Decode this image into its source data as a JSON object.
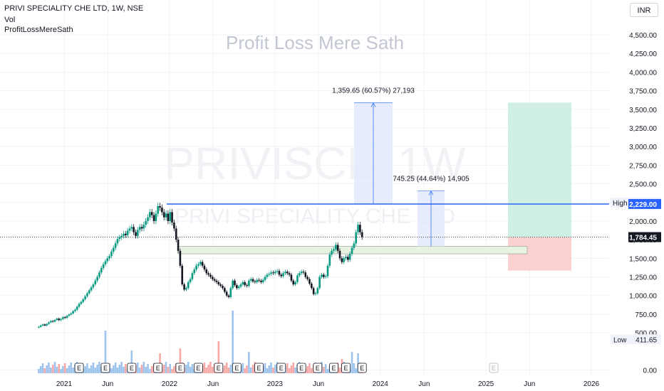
{
  "header": {
    "symbol_line": "PRIVI SPECIALITY CHE LTD, 1W, NSE",
    "indicator_1": "Vol",
    "indicator_2": "ProfitLossMereSath"
  },
  "currency": "INR",
  "watermarks": {
    "brand": "Profit Loss Mere Sath",
    "ticker": "PRIVISCL, 1W",
    "company": "PRIVI SPECIALITY CHE LTD"
  },
  "chart_data": {
    "type": "candlestick",
    "title": "PRIVI SPECIALITY CHE LTD, 1W, NSE",
    "x_tick_labels": [
      "2021",
      "Jun",
      "2022",
      "Jun",
      "2023",
      "Jun",
      "2024",
      "Jun",
      "2025",
      "Jun",
      "2026"
    ],
    "x_tick_dates": [
      "2021-01",
      "2021-06",
      "2022-01",
      "2022-06",
      "2023-01",
      "2023-06",
      "2024-01",
      "2024-06",
      "2025-01",
      "2025-06",
      "2026-01"
    ],
    "y_tick_labels": [
      "4,500.00",
      "4,250.00",
      "4,000.00",
      "3,750.00",
      "3,500.00",
      "3,250.00",
      "3,000.00",
      "2,750.00",
      "2,500.00",
      "2,250.00",
      "2,000.00",
      "1,750.00",
      "1,500.00",
      "1,250.00",
      "1,000.00",
      "750.00",
      "500.00",
      "0.00"
    ],
    "y_ticks": [
      4500,
      4250,
      4000,
      3750,
      3500,
      3250,
      3000,
      2750,
      2500,
      2250,
      2000,
      1750,
      1500,
      1250,
      1000,
      750,
      500,
      0
    ],
    "ylim": [
      -70,
      4760
    ],
    "series": {
      "date_start": "2020-10-05",
      "interval_days": 7,
      "close": [
        580,
        598,
        612,
        598,
        618,
        640,
        658,
        650,
        672,
        690,
        670,
        685,
        710,
        700,
        728,
        745,
        760,
        790,
        810,
        850,
        890,
        915,
        950,
        990,
        1030,
        1070,
        1110,
        1150,
        1200,
        1250,
        1310,
        1370,
        1420,
        1460,
        1500,
        1530,
        1590,
        1640,
        1700,
        1760,
        1780,
        1800,
        1830,
        1810,
        1870,
        1900,
        1920,
        1850,
        1800,
        1880,
        1920,
        1900,
        1950,
        2000,
        2050,
        2120,
        2080,
        2000,
        2100,
        2200,
        2180,
        2120,
        2050,
        2100,
        2000,
        2120,
        1980,
        1900,
        1750,
        1600,
        1400,
        1150,
        1080,
        1100,
        1180,
        1220,
        1300,
        1350,
        1400,
        1420,
        1450,
        1400,
        1350,
        1300,
        1280,
        1250,
        1220,
        1200,
        1180,
        1150,
        1130,
        1100,
        1050,
        1000,
        980,
        1100,
        1200,
        1140,
        1100,
        1120,
        1150,
        1180,
        1140,
        1130,
        1200,
        1220,
        1190,
        1180,
        1210,
        1200,
        1180,
        1210,
        1250,
        1280,
        1290,
        1310,
        1300,
        1320,
        1330,
        1280,
        1260,
        1300,
        1320,
        1300,
        1280,
        1200,
        1150,
        1180,
        1270,
        1300,
        1320,
        1310,
        1250,
        1220,
        1160,
        1100,
        1020,
        1030,
        1100,
        1250,
        1280,
        1250,
        1260,
        1400,
        1550,
        1600,
        1620,
        1680,
        1600,
        1500,
        1450,
        1500,
        1520,
        1480,
        1560,
        1640,
        1700,
        1850,
        1950,
        1850,
        1784.45
      ],
      "vol_median": 65
    },
    "levels": {
      "last_price": "1,784.45",
      "resistance_label": "2,229.00",
      "high_price": "2,249.00",
      "low_price": "411.65",
      "high_label": "High",
      "low_label": "Low"
    },
    "measurements": [
      {
        "text": "1,359.65 (60.57%) 27,193",
        "from": 2229,
        "to": 3588
      },
      {
        "text": "745.25 (44.64%) 14,905",
        "from": 1660,
        "to": 2405
      }
    ],
    "earnings_marker": "E"
  },
  "colors": {
    "up": "#089981",
    "down": "#131722",
    "vol_up": "#9ec4ee",
    "vol_down": "#f7a9a7",
    "blue_line": "#2962ff",
    "measure_fill": "#e1e8fb",
    "target_zone": "#cfeee4",
    "stop_zone": "#fbd0d1",
    "support_zone": "#e8f2e2",
    "grid": "#f0f3fa"
  }
}
